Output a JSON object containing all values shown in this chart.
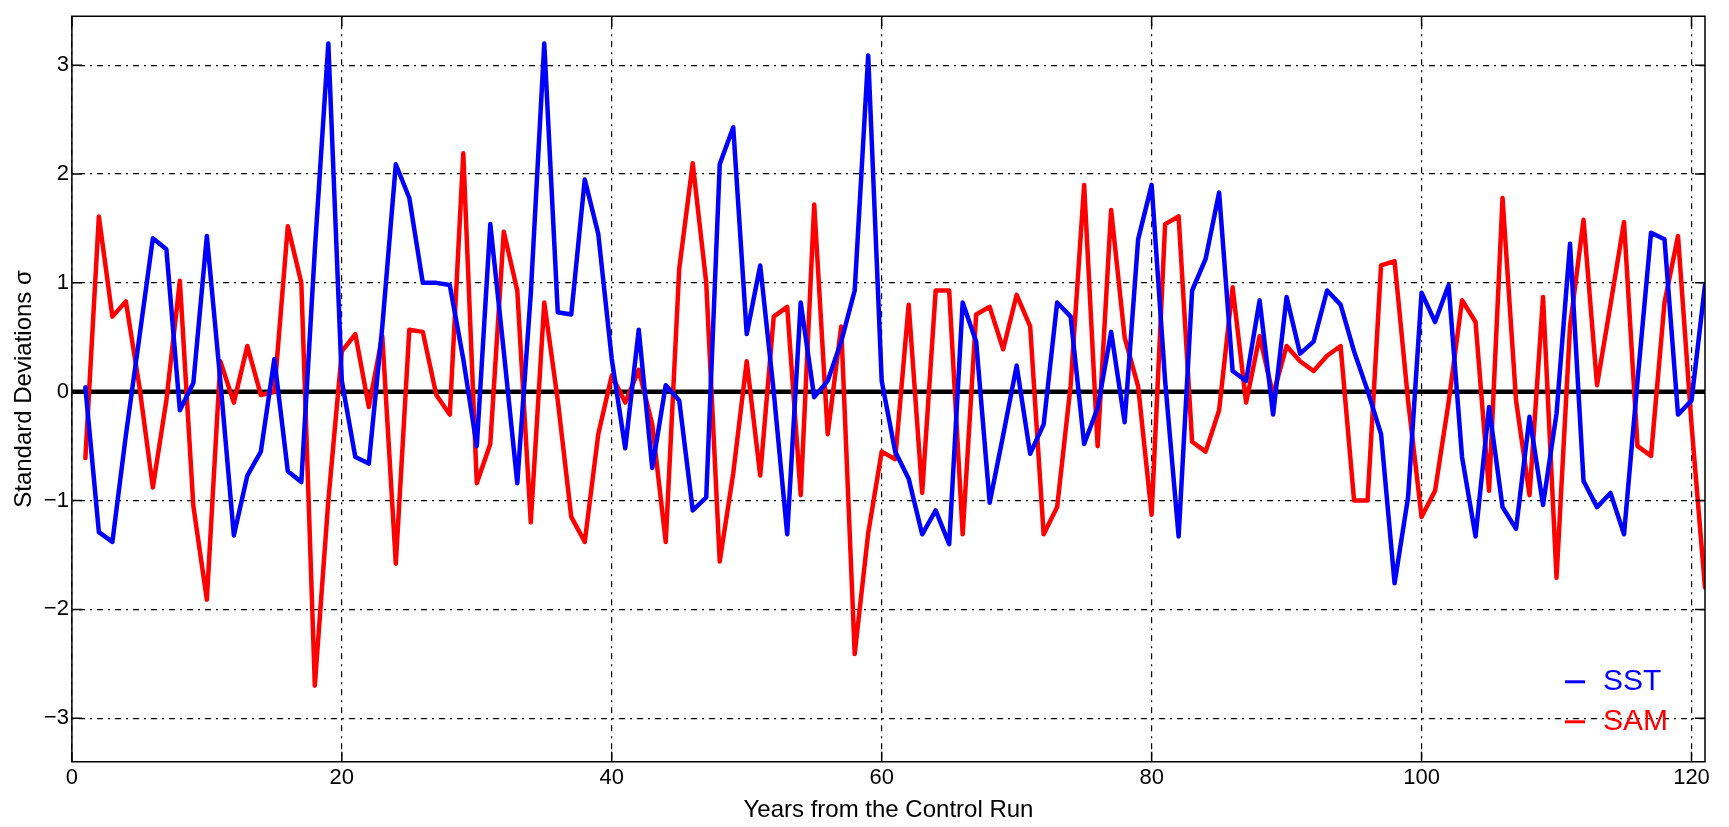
{
  "chart_data": {
    "type": "line",
    "xlabel": "Years from the Control Run",
    "ylabel": "Standard Deviations σ",
    "x": [
      1,
      2,
      3,
      4,
      5,
      6,
      7,
      8,
      9,
      10,
      11,
      12,
      13,
      14,
      15,
      16,
      17,
      18,
      19,
      20,
      21,
      22,
      23,
      24,
      25,
      26,
      27,
      28,
      29,
      30,
      31,
      32,
      33,
      34,
      35,
      36,
      37,
      38,
      39,
      40,
      41,
      42,
      43,
      44,
      45,
      46,
      47,
      48,
      49,
      50,
      51,
      52,
      53,
      54,
      55,
      56,
      57,
      58,
      59,
      60,
      61,
      62,
      63,
      64,
      65,
      66,
      67,
      68,
      69,
      70,
      71,
      72,
      73,
      74,
      75,
      76,
      77,
      78,
      79,
      80,
      81,
      82,
      83,
      84,
      85,
      86,
      87,
      88,
      89,
      90,
      91,
      92,
      93,
      94,
      95,
      96,
      97,
      98,
      99,
      100,
      101,
      102,
      103,
      104,
      105,
      106,
      107,
      108,
      109,
      110,
      111,
      112,
      113,
      114,
      115,
      116,
      117,
      118,
      119,
      120,
      121
    ],
    "series": [
      {
        "name": "SST",
        "color": "#0000ff",
        "values": [
          0.04,
          -1.29,
          -1.38,
          -0.4,
          0.5,
          1.41,
          1.31,
          -0.17,
          0.08,
          1.43,
          0.1,
          -1.32,
          -0.77,
          -0.55,
          0.3,
          -0.73,
          -0.83,
          1.3,
          3.2,
          0.1,
          -0.6,
          -0.66,
          0.6,
          2.09,
          1.78,
          1.0,
          1.0,
          0.98,
          0.3,
          -0.5,
          1.54,
          0.37,
          -0.84,
          0.9,
          3.2,
          0.73,
          0.71,
          1.95,
          1.45,
          0.3,
          -0.52,
          0.57,
          -0.7,
          0.06,
          -0.08,
          -1.09,
          -0.97,
          2.09,
          2.43,
          0.53,
          1.16,
          0.0,
          -1.31,
          0.82,
          -0.05,
          0.1,
          0.46,
          0.93,
          3.09,
          0.1,
          -0.55,
          -0.8,
          -1.31,
          -1.09,
          -1.4,
          0.82,
          0.46,
          -1.02,
          -0.4,
          0.24,
          -0.57,
          -0.3,
          0.82,
          0.69,
          -0.48,
          -0.15,
          0.55,
          -0.28,
          1.4,
          1.9,
          0.1,
          -1.33,
          0.93,
          1.22,
          1.83,
          0.19,
          0.1,
          0.84,
          -0.21,
          0.87,
          0.35,
          0.46,
          0.93,
          0.8,
          0.37,
          0.01,
          -0.39,
          -1.76,
          -0.97,
          0.91,
          0.64,
          0.98,
          -0.6,
          -1.33,
          -0.14,
          -1.06,
          -1.26,
          -0.23,
          -1.04,
          -0.2,
          1.36,
          -0.82,
          -1.06,
          -0.93,
          -1.31,
          0.1,
          1.46,
          1.4,
          -0.21,
          -0.08,
          0.98
        ]
      },
      {
        "name": "SAM",
        "color": "#ff0000",
        "values": [
          -0.61,
          1.61,
          0.69,
          0.83,
          0.05,
          -0.88,
          -0.08,
          1.02,
          -1.05,
          -1.91,
          0.28,
          -0.1,
          0.42,
          -0.03,
          0.0,
          1.52,
          1.0,
          -2.7,
          -1.0,
          0.37,
          0.53,
          -0.14,
          0.51,
          -1.58,
          0.57,
          0.55,
          -0.03,
          -0.21,
          2.19,
          -0.84,
          -0.48,
          1.47,
          0.93,
          -1.2,
          0.82,
          -0.08,
          -1.15,
          -1.38,
          -0.39,
          0.15,
          -0.1,
          0.2,
          -0.3,
          -1.38,
          1.13,
          2.1,
          1.0,
          -1.56,
          -0.75,
          0.28,
          -0.77,
          0.69,
          0.78,
          -0.95,
          1.72,
          -0.39,
          0.6,
          -2.41,
          -1.3,
          -0.55,
          -0.62,
          0.8,
          -0.93,
          0.93,
          0.93,
          -1.31,
          0.71,
          0.78,
          0.39,
          0.89,
          0.6,
          -1.31,
          -1.06,
          0.06,
          1.9,
          -0.5,
          1.67,
          0.5,
          0.05,
          -1.13,
          1.54,
          1.61,
          -0.46,
          -0.55,
          -0.17,
          0.96,
          -0.1,
          0.51,
          -0.03,
          0.42,
          0.28,
          0.19,
          0.33,
          0.42,
          -1.0,
          -1.0,
          1.16,
          1.2,
          -0.08,
          -1.15,
          -0.91,
          -0.1,
          0.84,
          0.64,
          -0.91,
          1.78,
          -0.08,
          -0.95,
          0.87,
          -1.71,
          0.6,
          1.58,
          0.06,
          0.8,
          1.56,
          -0.5,
          -0.59,
          0.82,
          1.43,
          -0.3,
          -1.8
        ]
      }
    ],
    "xlim": [
      0,
      121
    ],
    "xticks": [
      0,
      20,
      40,
      60,
      80,
      100,
      120
    ],
    "ylim": [
      -3.4,
      3.45
    ],
    "yticks": [
      -3,
      -2,
      -1,
      0,
      1,
      2,
      3
    ],
    "ref_lines": [
      {
        "axis": "y",
        "value": 0,
        "color": "#000000"
      }
    ],
    "grid": true,
    "legend": "bottom right",
    "line_style": "solid",
    "marker": "none"
  }
}
